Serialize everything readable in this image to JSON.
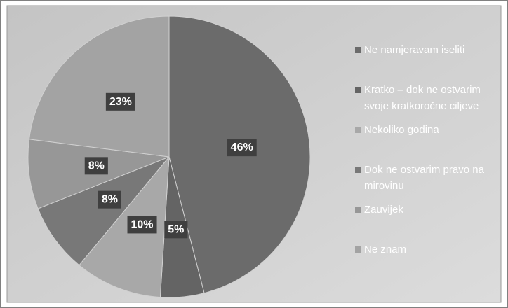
{
  "chart_data": {
    "type": "pie",
    "categories": [
      "Ne namjeravam iseliti",
      "Kratko – dok ne ostvarim svoje kratkoročne ciljeve",
      "Nekoliko godina",
      "Dok ne ostvarim pravo na mirovinu",
      "Zauvijek",
      "Ne znam"
    ],
    "values": [
      46,
      5,
      10,
      8,
      8,
      23
    ],
    "value_labels": [
      "46%",
      "5%",
      "10%",
      "8%",
      "8%",
      "23%"
    ],
    "colors": [
      "#6b6b6b",
      "#646464",
      "#a8a8a8",
      "#787878",
      "#979797",
      "#a3a3a3"
    ],
    "legend": "right"
  }
}
